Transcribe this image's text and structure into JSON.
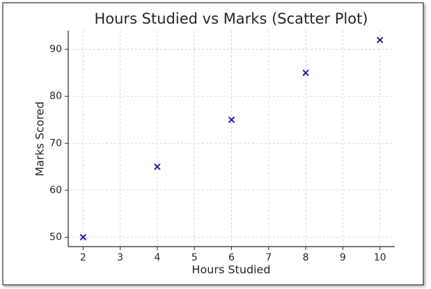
{
  "chart_data": {
    "type": "scatter",
    "title": "Hours Studied vs Marks (Scatter Plot)",
    "x_label": "Hours Studied",
    "y_label": "Marks Scored",
    "x": [
      2,
      4,
      6,
      8,
      10
    ],
    "values": [
      50,
      65,
      75,
      85,
      92
    ],
    "color": "#1c1ca8",
    "marker": "x",
    "xlim": [
      1.6,
      10.4
    ],
    "xticks": [
      2,
      3,
      4,
      5,
      6,
      7,
      8,
      9,
      10
    ],
    "ylim": [
      48,
      94
    ],
    "yticks": [
      50,
      60,
      70,
      80,
      90
    ],
    "grid": true
  }
}
